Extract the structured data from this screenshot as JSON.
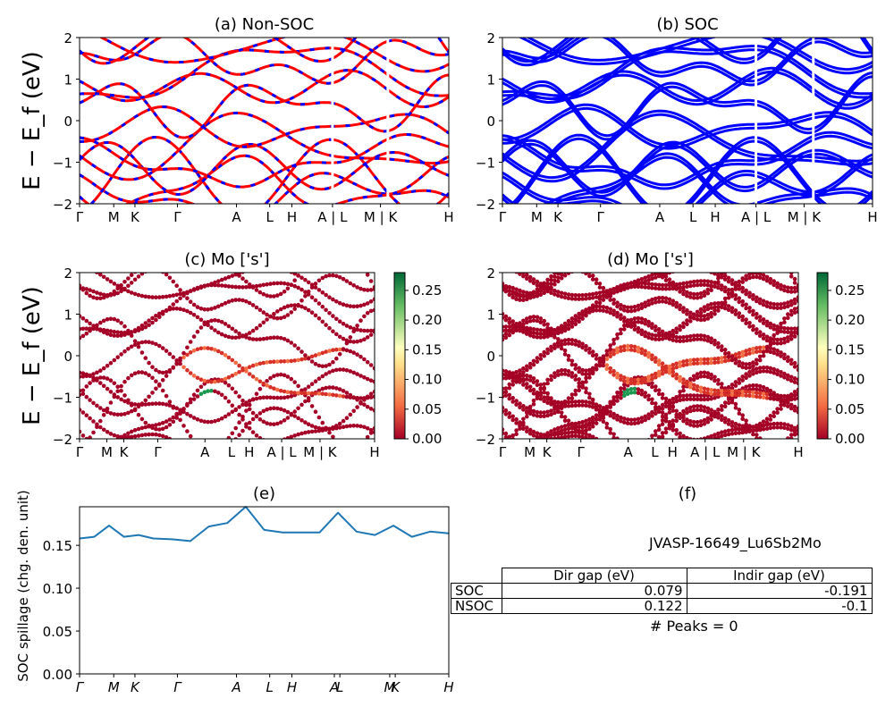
{
  "panels": [
    {
      "id": "a",
      "title": "(a) Non-SOC",
      "ylabel": "E − E_f (eV)",
      "ylim": [
        -2,
        2
      ],
      "yticks": [
        -2,
        -1,
        0,
        1,
        2
      ]
    },
    {
      "id": "b",
      "title": "(b) SOC",
      "ylim": [
        -2,
        2
      ],
      "yticks": [
        -2,
        -1,
        0,
        1,
        2
      ]
    },
    {
      "id": "c",
      "title": "(c)  Mo ['s']",
      "ylabel": "E − E_f (eV)",
      "ylim": [
        -2,
        2
      ],
      "yticks": [
        -2,
        -1,
        0,
        1,
        2
      ]
    },
    {
      "id": "d",
      "title": "(d) Mo ['s']",
      "ylim": [
        -2,
        2
      ],
      "yticks": [
        -2,
        -1,
        0,
        1,
        2
      ]
    },
    {
      "id": "e",
      "title": "(e)",
      "ylabel": "SOC spillage (chg. den. unit)"
    },
    {
      "id": "f",
      "title": "(f)"
    }
  ],
  "kpath_labels": [
    "Γ",
    "M",
    "K",
    "Γ",
    "A",
    "L",
    "H",
    "A | L",
    "M | K",
    "H"
  ],
  "kpath_labels_e": [
    "Γ",
    "M",
    "K",
    "Γ",
    "A",
    "L",
    "H",
    "A",
    "L",
    "M",
    "K",
    "H"
  ],
  "colorbar": {
    "ticks": [
      "0.00",
      "0.05",
      "0.10",
      "0.15",
      "0.20",
      "0.25"
    ],
    "range": [
      0,
      0.28
    ],
    "cmap": "RdYlGn"
  },
  "chart_data": [
    {
      "type": "line",
      "panel": "a",
      "note": "band structure (non-SOC)",
      "colors": [
        "#ff0000",
        "#0000ff"
      ]
    },
    {
      "type": "line",
      "panel": "b",
      "note": "band structure (SOC)",
      "colors": [
        "#0000ff"
      ]
    },
    {
      "type": "scatter",
      "panel": "c"
    },
    {
      "type": "scatter",
      "panel": "d"
    },
    {
      "type": "line",
      "panel": "e",
      "ylim": [
        0,
        0.195
      ],
      "yticks": [
        "0.00",
        "0.05",
        "0.10",
        "0.15"
      ],
      "x": [
        0,
        0.04,
        0.08,
        0.12,
        0.16,
        0.2,
        0.25,
        0.3,
        0.35,
        0.4,
        0.45,
        0.5,
        0.55,
        0.6,
        0.65,
        0.7,
        0.75,
        0.8,
        0.85,
        0.9,
        0.95,
        1.0
      ],
      "values": [
        0.158,
        0.16,
        0.173,
        0.16,
        0.162,
        0.158,
        0.157,
        0.155,
        0.172,
        0.176,
        0.195,
        0.168,
        0.165,
        0.165,
        0.165,
        0.188,
        0.166,
        0.162,
        0.173,
        0.16,
        0.166,
        0.164
      ],
      "color": "#1f77b4"
    }
  ],
  "info": {
    "material": "JVASP-16649_Lu6Sb2Mo",
    "table_header": [
      "Dir gap (eV)",
      "Indir gap (eV)"
    ],
    "rows": [
      {
        "label": "SOC",
        "dir": "0.079",
        "indir": "-0.191"
      },
      {
        "label": "NSOC",
        "dir": "0.122",
        "indir": "-0.1"
      }
    ],
    "peaks": "# Peaks = 0"
  }
}
